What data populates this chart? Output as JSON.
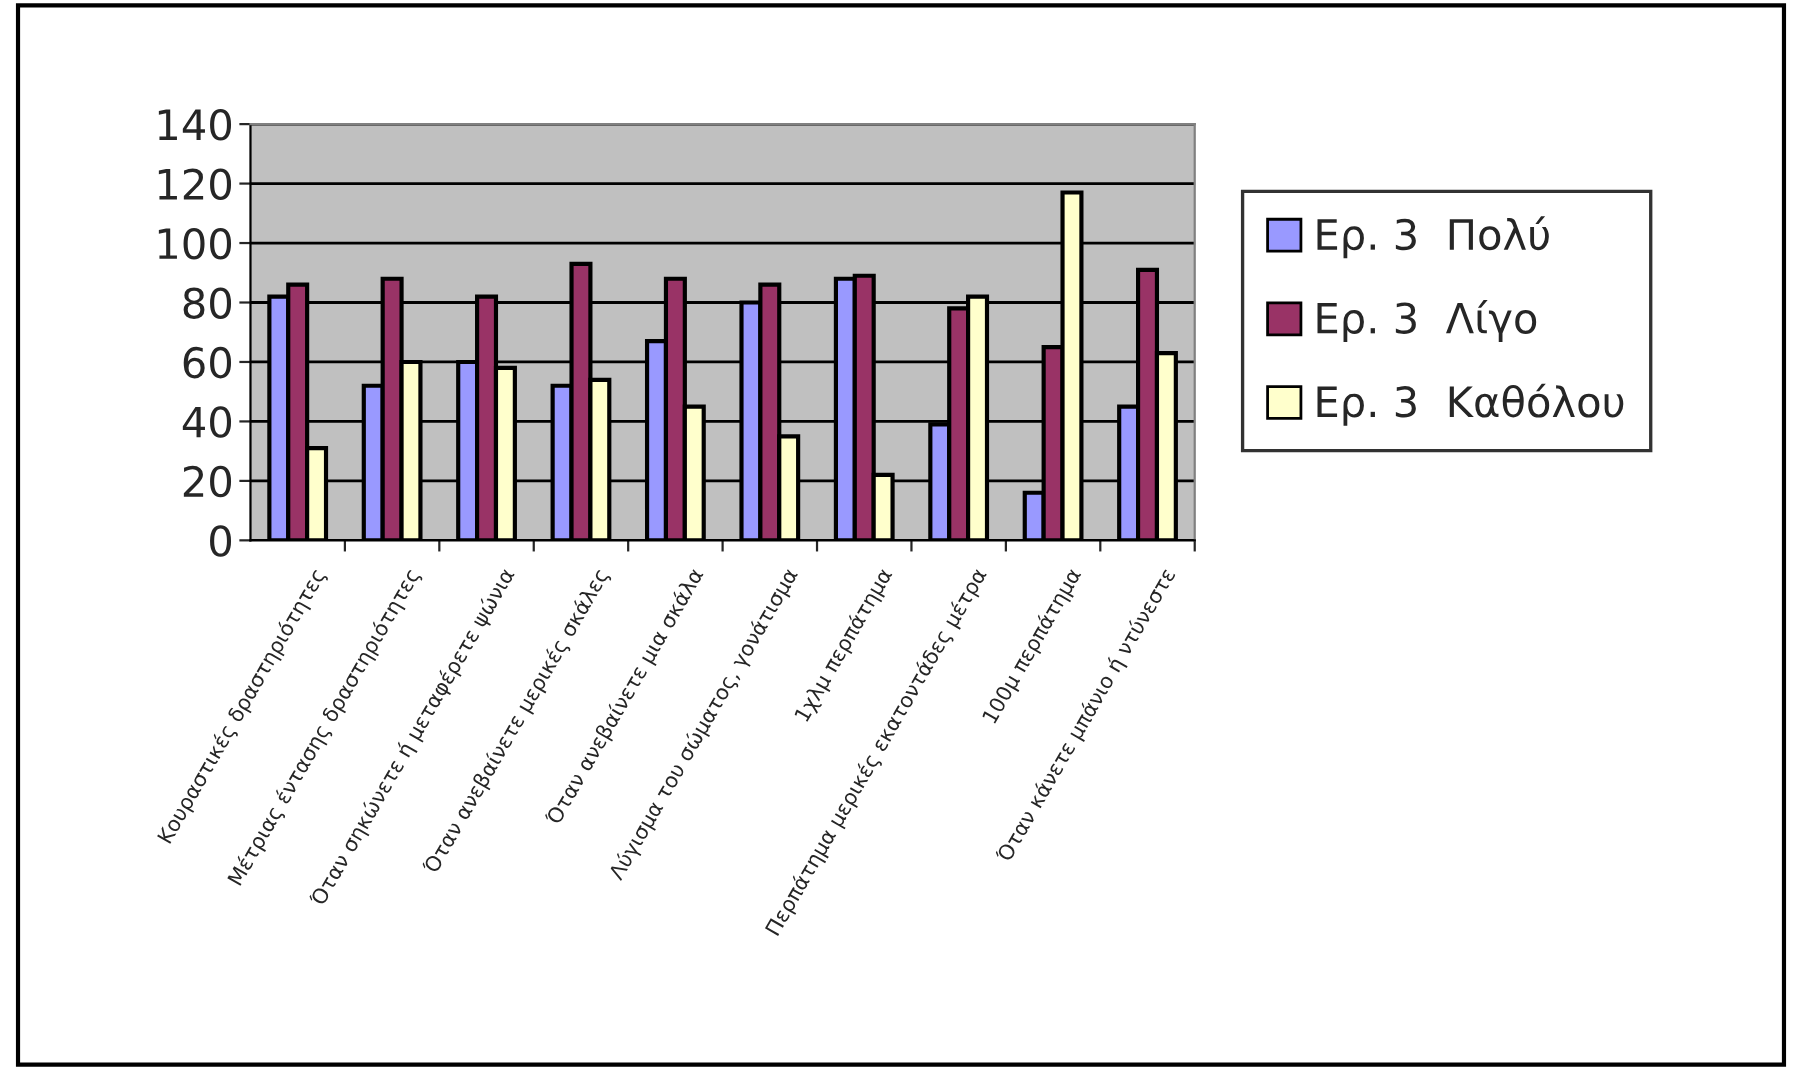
{
  "chart_data": {
    "type": "bar",
    "categories": [
      "Κουραστικές δραστηριότητες",
      "Μέτριας έντασης δραστηριότητες",
      "Όταν σηκώνετε ή μεταφέρετε ψώνια",
      "Όταν ανεβαίνετε μερικές σκάλες",
      "Όταν ανεβαίνετε μια σκάλα",
      "Λύγισμα του σώματος, γονάτισμα",
      "1χλμ περπάτημα",
      "Περπάτημα μερικές εκατοντάδες μέτρα",
      "100μ περπάτημα",
      "Όταν κάνετε μπάνιο ή ντύνεστε"
    ],
    "series": [
      {
        "name": "Ερ. 3  Πολύ",
        "color": "#9999ff",
        "values": [
          82,
          52,
          60,
          52,
          67,
          80,
          88,
          39,
          16,
          45
        ]
      },
      {
        "name": "Ερ. 3  Λίγο",
        "color": "#993366",
        "values": [
          86,
          88,
          82,
          93,
          88,
          86,
          89,
          78,
          65,
          91
        ]
      },
      {
        "name": "Ερ. 3  Καθόλου",
        "color": "#ffffcc",
        "values": [
          31,
          60,
          58,
          54,
          45,
          35,
          22,
          82,
          117,
          63
        ]
      }
    ],
    "ylim": [
      0,
      140
    ],
    "yticks": [
      0,
      20,
      40,
      60,
      80,
      100,
      120,
      140
    ],
    "grid": "y",
    "legend": "right"
  }
}
